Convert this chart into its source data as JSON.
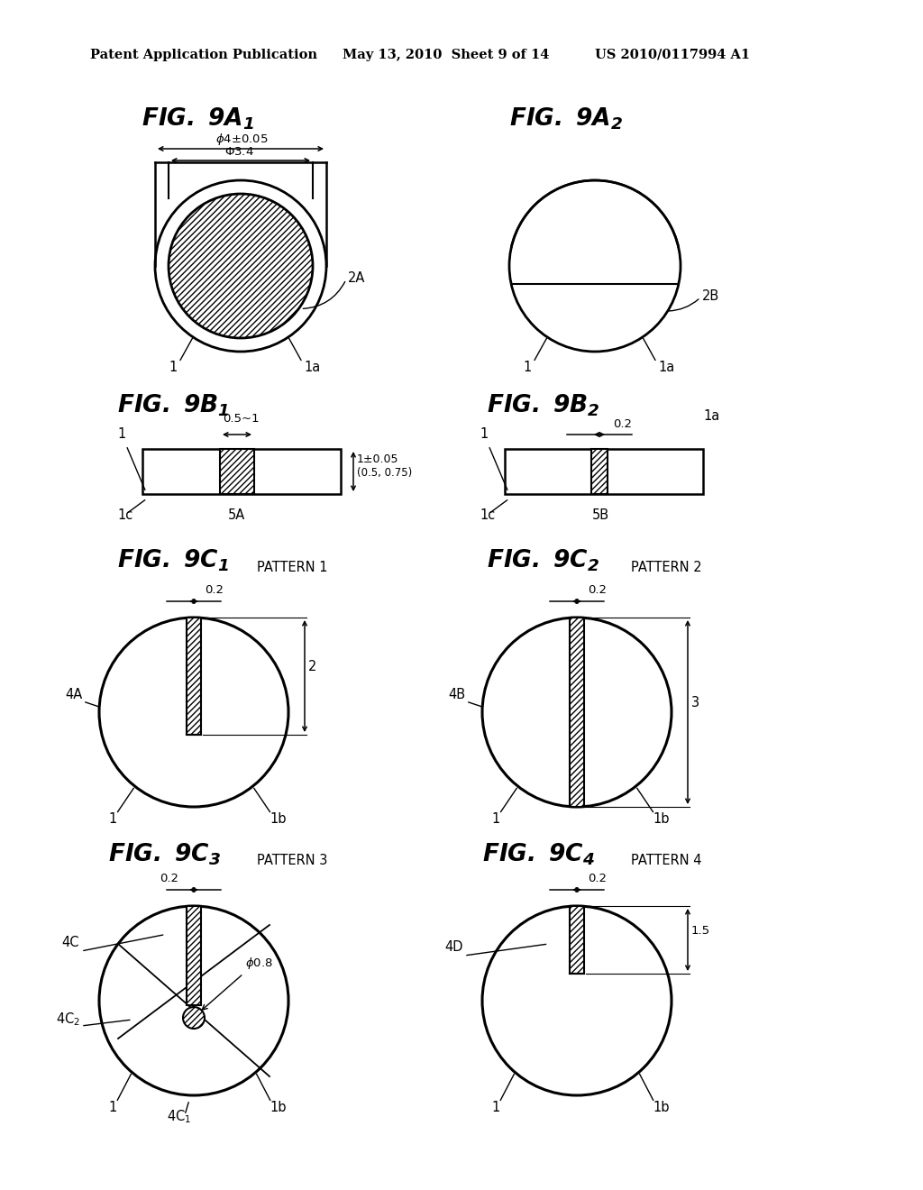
{
  "header_left": "Patent Application Publication",
  "header_mid": "May 13, 2010  Sheet 9 of 14",
  "header_right": "US 2010/0117994 A1",
  "bg_color": "#ffffff"
}
